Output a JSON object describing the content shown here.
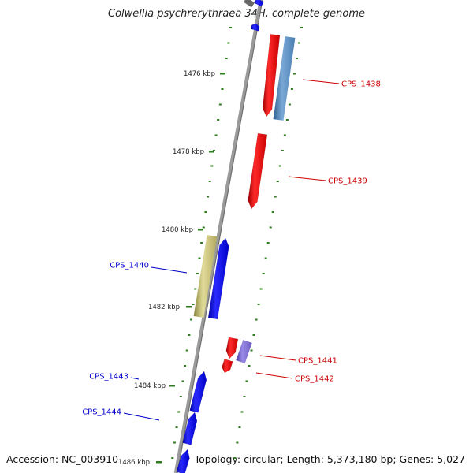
{
  "title": "Colwellia psychrerythraea 34H, complete genome",
  "footer": {
    "accession": "Accession: NC_003910",
    "summary": "Topology: circular; Length: 5,373,180 bp; Genes: 5,027"
  },
  "colors": {
    "backbone": "#8a8a8a",
    "tick": "#2e7d1f",
    "forward_gene": "#0000ff",
    "reverse_gene": "#ff0000",
    "label_forward": "#0000cc",
    "label_reverse": "#cc0000"
  },
  "ticks": [
    {
      "label": "1476 kbp"
    },
    {
      "label": "1478 kbp"
    },
    {
      "label": "1480 kbp"
    },
    {
      "label": "1482 kbp"
    },
    {
      "label": "1484 kbp"
    },
    {
      "label": "1486 kbp"
    }
  ],
  "genes": [
    {
      "label": "CPS_1438",
      "strand": "reverse"
    },
    {
      "label": "CPS_1439",
      "strand": "reverse"
    },
    {
      "label": "CPS_1440",
      "strand": "forward"
    },
    {
      "label": "CPS_1441",
      "strand": "reverse"
    },
    {
      "label": "CPS_1442",
      "strand": "reverse"
    },
    {
      "label": "CPS_1443",
      "strand": "forward"
    },
    {
      "label": "CPS_1444",
      "strand": "forward"
    }
  ]
}
